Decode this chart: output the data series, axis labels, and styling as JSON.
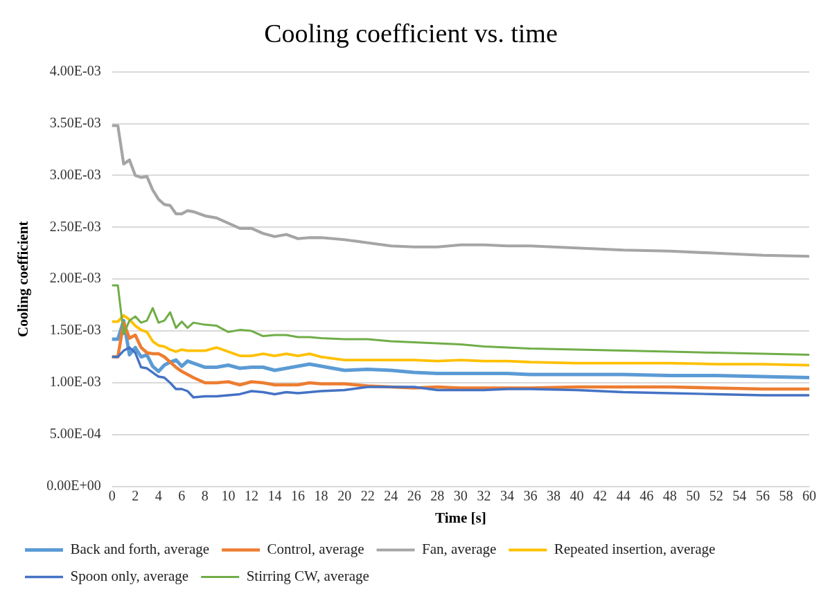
{
  "chart_data": {
    "type": "line",
    "title": "Cooling coefficient vs. time",
    "xlabel": "Time [s]",
    "ylabel": "Cooling coefficient",
    "x": [
      0,
      0.5,
      1,
      1.5,
      2,
      2.5,
      3,
      3.5,
      4,
      4.5,
      5,
      5.5,
      6,
      6.5,
      7,
      8,
      9,
      10,
      11,
      12,
      13,
      14,
      15,
      16,
      17,
      18,
      20,
      22,
      24,
      26,
      28,
      30,
      32,
      34,
      36,
      40,
      44,
      48,
      52,
      56,
      60
    ],
    "series": [
      {
        "name": "Back and forth, average",
        "color": "#5b9bd5",
        "values": [
          0.00142,
          0.00142,
          0.0016,
          0.00127,
          0.00134,
          0.00125,
          0.00127,
          0.00116,
          0.00111,
          0.00117,
          0.0012,
          0.00122,
          0.00116,
          0.00121,
          0.00119,
          0.00115,
          0.00115,
          0.00117,
          0.00114,
          0.00115,
          0.00115,
          0.00112,
          0.00114,
          0.00116,
          0.00118,
          0.00116,
          0.00112,
          0.00113,
          0.00112,
          0.0011,
          0.00109,
          0.00109,
          0.00109,
          0.00109,
          0.00108,
          0.00108,
          0.00108,
          0.00107,
          0.00107,
          0.00106,
          0.00105
        ]
      },
      {
        "name": "Control, average",
        "color": "#ed7d31",
        "values": [
          0.00125,
          0.00125,
          0.00158,
          0.00143,
          0.00146,
          0.00134,
          0.00129,
          0.00128,
          0.00128,
          0.00125,
          0.0012,
          0.00115,
          0.00111,
          0.00108,
          0.00105,
          0.001,
          0.001,
          0.00101,
          0.00098,
          0.00101,
          0.001,
          0.00098,
          0.00098,
          0.00098,
          0.001,
          0.00099,
          0.00099,
          0.00097,
          0.00096,
          0.00095,
          0.00096,
          0.00095,
          0.00095,
          0.00095,
          0.00095,
          0.00096,
          0.00096,
          0.00096,
          0.00095,
          0.00094,
          0.00094
        ]
      },
      {
        "name": "Fan, average",
        "color": "#a5a5a5",
        "values": [
          0.00348,
          0.00348,
          0.00311,
          0.00315,
          0.003,
          0.00298,
          0.00299,
          0.00286,
          0.00277,
          0.00272,
          0.00271,
          0.00263,
          0.00263,
          0.00266,
          0.00265,
          0.00261,
          0.00259,
          0.00254,
          0.00249,
          0.00249,
          0.00244,
          0.00241,
          0.00243,
          0.00239,
          0.0024,
          0.0024,
          0.00238,
          0.00235,
          0.00232,
          0.00231,
          0.00231,
          0.00233,
          0.00233,
          0.00232,
          0.00232,
          0.0023,
          0.00228,
          0.00227,
          0.00225,
          0.00223,
          0.00222
        ]
      },
      {
        "name": "Repeated insertion, average",
        "color": "#ffc000",
        "values": [
          0.00159,
          0.00159,
          0.00165,
          0.00161,
          0.00155,
          0.00151,
          0.00149,
          0.0014,
          0.00136,
          0.00135,
          0.00132,
          0.0013,
          0.00132,
          0.00131,
          0.00131,
          0.00131,
          0.00134,
          0.0013,
          0.00126,
          0.00126,
          0.00128,
          0.00126,
          0.00128,
          0.00126,
          0.00128,
          0.00125,
          0.00122,
          0.00122,
          0.00122,
          0.00122,
          0.00121,
          0.00122,
          0.00121,
          0.00121,
          0.0012,
          0.00119,
          0.00119,
          0.00119,
          0.00118,
          0.00118,
          0.00117
        ]
      },
      {
        "name": "Spoon only, average",
        "color": "#4472c4",
        "values": [
          0.00125,
          0.00125,
          0.00131,
          0.00134,
          0.00129,
          0.00115,
          0.00114,
          0.0011,
          0.00106,
          0.00105,
          0.001,
          0.00094,
          0.00094,
          0.00092,
          0.00086,
          0.00087,
          0.00087,
          0.00088,
          0.00089,
          0.00092,
          0.00091,
          0.00089,
          0.00091,
          0.0009,
          0.00091,
          0.00092,
          0.00093,
          0.00096,
          0.00096,
          0.00096,
          0.00093,
          0.00093,
          0.00093,
          0.00094,
          0.00094,
          0.00093,
          0.00091,
          0.0009,
          0.00089,
          0.00088,
          0.00088
        ]
      },
      {
        "name": "Stirring CW, average",
        "color": "#70ad47",
        "values": [
          0.00194,
          0.00194,
          0.00147,
          0.0016,
          0.00164,
          0.00158,
          0.0016,
          0.00172,
          0.00158,
          0.0016,
          0.00168,
          0.00153,
          0.00159,
          0.00153,
          0.00158,
          0.00156,
          0.00155,
          0.00149,
          0.00151,
          0.0015,
          0.00145,
          0.00146,
          0.00146,
          0.00144,
          0.00144,
          0.00143,
          0.00142,
          0.00142,
          0.0014,
          0.00139,
          0.00138,
          0.00137,
          0.00135,
          0.00134,
          0.00133,
          0.00132,
          0.00131,
          0.0013,
          0.00129,
          0.00128,
          0.00127
        ]
      }
    ],
    "xlim": [
      0,
      60
    ],
    "xticks": [
      0,
      2,
      4,
      6,
      8,
      10,
      12,
      14,
      16,
      18,
      20,
      22,
      24,
      26,
      28,
      30,
      32,
      34,
      36,
      38,
      40,
      42,
      44,
      46,
      48,
      50,
      52,
      54,
      56,
      58,
      60
    ],
    "ylim": [
      0,
      0.004
    ],
    "yticks": [
      {
        "value": 0,
        "label": "0.00E+00"
      },
      {
        "value": 0.0005,
        "label": "5.00E-04"
      },
      {
        "value": 0.001,
        "label": "1.00E-03"
      },
      {
        "value": 0.0015,
        "label": "1.50E-03"
      },
      {
        "value": 0.002,
        "label": "2.00E-03"
      },
      {
        "value": 0.0025,
        "label": "2.50E-03"
      },
      {
        "value": 0.003,
        "label": "3.00E-03"
      },
      {
        "value": 0.0035,
        "label": "3.50E-03"
      },
      {
        "value": 0.004,
        "label": "4.00E-03"
      }
    ],
    "grid": "y",
    "legend": "bottom",
    "marker": "none",
    "line_style": "solid"
  }
}
